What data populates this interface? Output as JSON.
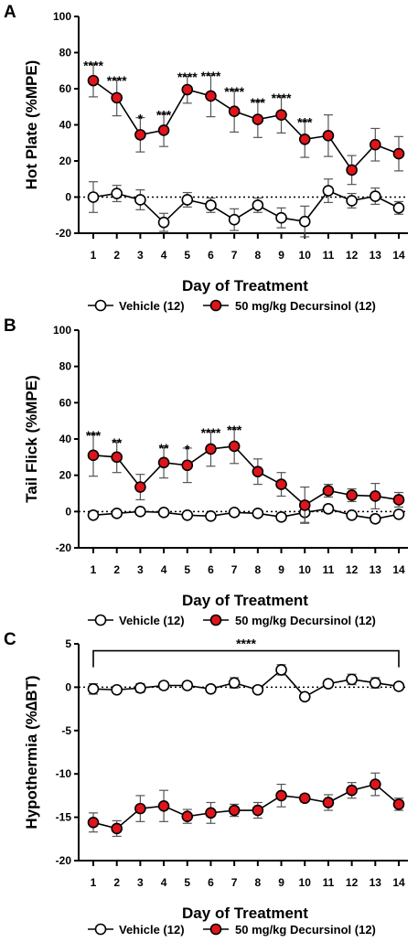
{
  "panels": [
    {
      "letter": "A",
      "chart_data": {
        "type": "line",
        "ylabel": "Hot Plate (%MPE)",
        "xlabel": "Day of Treatment",
        "x": [
          1,
          2,
          3,
          4,
          5,
          6,
          7,
          8,
          9,
          10,
          11,
          12,
          13,
          14
        ],
        "ylim": [
          -20,
          100
        ],
        "yticks": [
          -20,
          0,
          20,
          40,
          60,
          80,
          100
        ],
        "reference_line": 0,
        "series": [
          {
            "name": "Vehicle (12)",
            "color": "#ffffff",
            "values": [
              0,
              2,
              -1.5,
              -14,
              -1.5,
              -4.5,
              -12.5,
              -4.5,
              -11.5,
              -13.5,
              3.5,
              -2,
              0.5,
              -6
            ],
            "errors": [
              8.5,
              4.5,
              5.5,
              5,
              4,
              4,
              6,
              4,
              5.5,
              8.5,
              6.5,
              4,
              4.5,
              3.5
            ]
          },
          {
            "name": "50 mg/kg Decursinol (12)",
            "color": "#e0141b",
            "values": [
              64.5,
              55,
              34.5,
              37,
              59.5,
              56,
              47.5,
              43,
              45.5,
              32,
              34,
              15,
              29,
              24
            ],
            "errors": [
              9,
              10,
              9.5,
              9,
              7.5,
              11.5,
              11.5,
              10,
              10,
              10,
              11.5,
              8,
              9,
              9.5
            ]
          }
        ],
        "annotations": [
          "****",
          "****",
          "*",
          "***",
          "****",
          "****",
          "****",
          "***",
          "****",
          "***",
          "",
          "",
          "",
          ""
        ]
      },
      "legend": [
        "Vehicle (12)",
        "50 mg/kg Decursinol (12)"
      ]
    },
    {
      "letter": "B",
      "chart_data": {
        "type": "line",
        "ylabel": "Tail Flick (%MPE)",
        "xlabel": "Day of Treatment",
        "x": [
          1,
          2,
          3,
          4,
          5,
          6,
          7,
          8,
          9,
          10,
          11,
          12,
          13,
          14
        ],
        "ylim": [
          -20,
          100
        ],
        "yticks": [
          -20,
          0,
          20,
          40,
          60,
          80,
          100
        ],
        "reference_line": 0,
        "series": [
          {
            "name": "Vehicle  (12)",
            "color": "#ffffff",
            "values": [
              -2,
              -1,
              0,
              -0.5,
              -2,
              -2.5,
              -0.5,
              -1,
              -3,
              -0.5,
              1.5,
              -2,
              -4,
              -1.5
            ],
            "errors": [
              1.5,
              1.5,
              1.5,
              1.5,
              1.5,
              1.5,
              1.5,
              1.5,
              2,
              5.5,
              2,
              1.5,
              2,
              1.5
            ]
          },
          {
            "name": "50 mg/kg Decursinol (12)",
            "color": "#e0141b",
            "values": [
              31,
              30,
              13.5,
              27,
              25.5,
              34.5,
              36,
              22,
              15,
              3.5,
              11.5,
              9,
              8.5,
              6.5
            ],
            "errors": [
              11.5,
              8.5,
              7,
              8.5,
              9.5,
              9.5,
              9.5,
              7,
              6.5,
              10,
              3.5,
              3.5,
              7,
              4
            ]
          }
        ],
        "annotations": [
          "***",
          "**",
          "",
          "**",
          "*",
          "****",
          "***",
          "",
          "",
          "",
          "",
          "",
          "",
          ""
        ]
      },
      "legend": [
        "Vehicle  (12)",
        "50 mg/kg Decursinol (12)"
      ]
    },
    {
      "letter": "C",
      "chart_data": {
        "type": "line",
        "ylabel": "Hypothermia (%∆BT)",
        "xlabel": "Day of Treatment",
        "x": [
          1,
          2,
          3,
          4,
          5,
          6,
          7,
          8,
          9,
          10,
          11,
          12,
          13,
          14
        ],
        "ylim": [
          -20,
          5
        ],
        "yticks": [
          -20,
          -15,
          -10,
          -5,
          0,
          5
        ],
        "reference_line": 0,
        "series": [
          {
            "name": "Vehicle (12)",
            "color": "#ffffff",
            "values": [
              -0.2,
              -0.3,
              -0.1,
              0.2,
              0.2,
              -0.2,
              0.5,
              -0.3,
              2.0,
              -1.1,
              0.4,
              0.9,
              0.5,
              0.1
            ],
            "errors": [
              0.6,
              0.3,
              0.5,
              0.4,
              0.4,
              0.4,
              0.6,
              0.3,
              0.6,
              0.3,
              0.3,
              0.6,
              0.6,
              0.4
            ]
          },
          {
            "name": "50 mg/kg Decursinol (12)",
            "color": "#e0141b",
            "values": [
              -15.6,
              -16.3,
              -14,
              -13.7,
              -14.9,
              -14.5,
              -14.2,
              -14.2,
              -12.5,
              -12.8,
              -13.3,
              -11.9,
              -11.2,
              -13.5
            ],
            "errors": [
              1.1,
              0.9,
              1.5,
              1.8,
              0.8,
              1.2,
              0.7,
              0.9,
              1.3,
              0.4,
              0.9,
              0.9,
              1.3,
              0.7
            ]
          }
        ],
        "bracket": {
          "from": 1,
          "to": 14,
          "label": "****"
        }
      },
      "legend": [
        "Vehicle (12)",
        "50 mg/kg Decursinol (12)"
      ]
    }
  ]
}
